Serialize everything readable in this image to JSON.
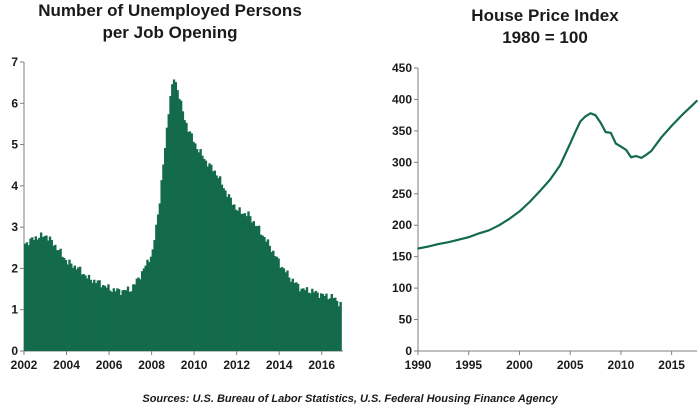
{
  "charts": {
    "left": {
      "title_line1": "Number of Unemployed Persons",
      "title_line2": "per Job Opening"
    },
    "right": {
      "title_line1": "House Price Index",
      "title_line2": "1980 = 100"
    }
  },
  "source": "Sources: U.S. Bureau of Labor Statistics, U.S. Federal Housing Finance Agency",
  "colors": {
    "series": "#136b4a",
    "axis": "#7f7f7f",
    "grid": "#d0d0d0"
  },
  "chart_data": [
    {
      "type": "bar",
      "title": "Number of Unemployed Persons per Job Opening",
      "xlabel": "",
      "ylabel": "",
      "xlim": [
        2002,
        2017
      ],
      "ylim": [
        0,
        7
      ],
      "x_ticks": [
        2002,
        2004,
        2006,
        2008,
        2010,
        2012,
        2014,
        2016
      ],
      "y_ticks": [
        0,
        1,
        2,
        3,
        4,
        5,
        6,
        7
      ],
      "grid": false,
      "x": [
        2002.0,
        2002.5,
        2003.0,
        2003.5,
        2004.0,
        2004.5,
        2005.0,
        2005.5,
        2006.0,
        2006.5,
        2007.0,
        2007.5,
        2008.0,
        2008.3,
        2008.6,
        2008.8,
        2009.0,
        2009.2,
        2009.5,
        2010.0,
        2010.5,
        2011.0,
        2011.5,
        2012.0,
        2012.5,
        2013.0,
        2013.5,
        2014.0,
        2014.5,
        2015.0,
        2015.5,
        2016.0,
        2016.5,
        2016.9
      ],
      "values": [
        2.6,
        2.75,
        2.8,
        2.5,
        2.15,
        2.0,
        1.75,
        1.65,
        1.5,
        1.45,
        1.5,
        1.9,
        2.4,
        3.5,
        5.0,
        6.1,
        6.6,
        6.3,
        5.6,
        5.0,
        4.6,
        4.3,
        3.8,
        3.4,
        3.3,
        2.95,
        2.55,
        2.1,
        1.75,
        1.5,
        1.45,
        1.35,
        1.3,
        1.1
      ]
    },
    {
      "type": "line",
      "title": "House Price Index 1980 = 100",
      "xlabel": "",
      "ylabel": "",
      "xlim": [
        1990,
        2017.5
      ],
      "ylim": [
        0,
        450
      ],
      "x_ticks": [
        1990,
        1995,
        2000,
        2005,
        2010,
        2015
      ],
      "y_ticks": [
        0,
        50,
        100,
        150,
        200,
        250,
        300,
        350,
        400,
        450
      ],
      "grid": false,
      "x": [
        1990,
        1991,
        1992,
        1993,
        1994,
        1995,
        1996,
        1997,
        1998,
        1999,
        2000,
        2001,
        2002,
        2003,
        2004,
        2005,
        2005.5,
        2006,
        2006.5,
        2007,
        2007.5,
        2008,
        2008.5,
        2009,
        2009.5,
        2010,
        2010.5,
        2011,
        2011.5,
        2012,
        2012.5,
        2013,
        2014,
        2015,
        2016,
        2017,
        2017.5
      ],
      "values": [
        163,
        166,
        170,
        173,
        177,
        181,
        187,
        192,
        200,
        210,
        222,
        237,
        254,
        272,
        295,
        330,
        348,
        365,
        373,
        378,
        375,
        363,
        348,
        347,
        330,
        325,
        320,
        308,
        310,
        307,
        312,
        318,
        340,
        358,
        375,
        390,
        398
      ]
    }
  ]
}
